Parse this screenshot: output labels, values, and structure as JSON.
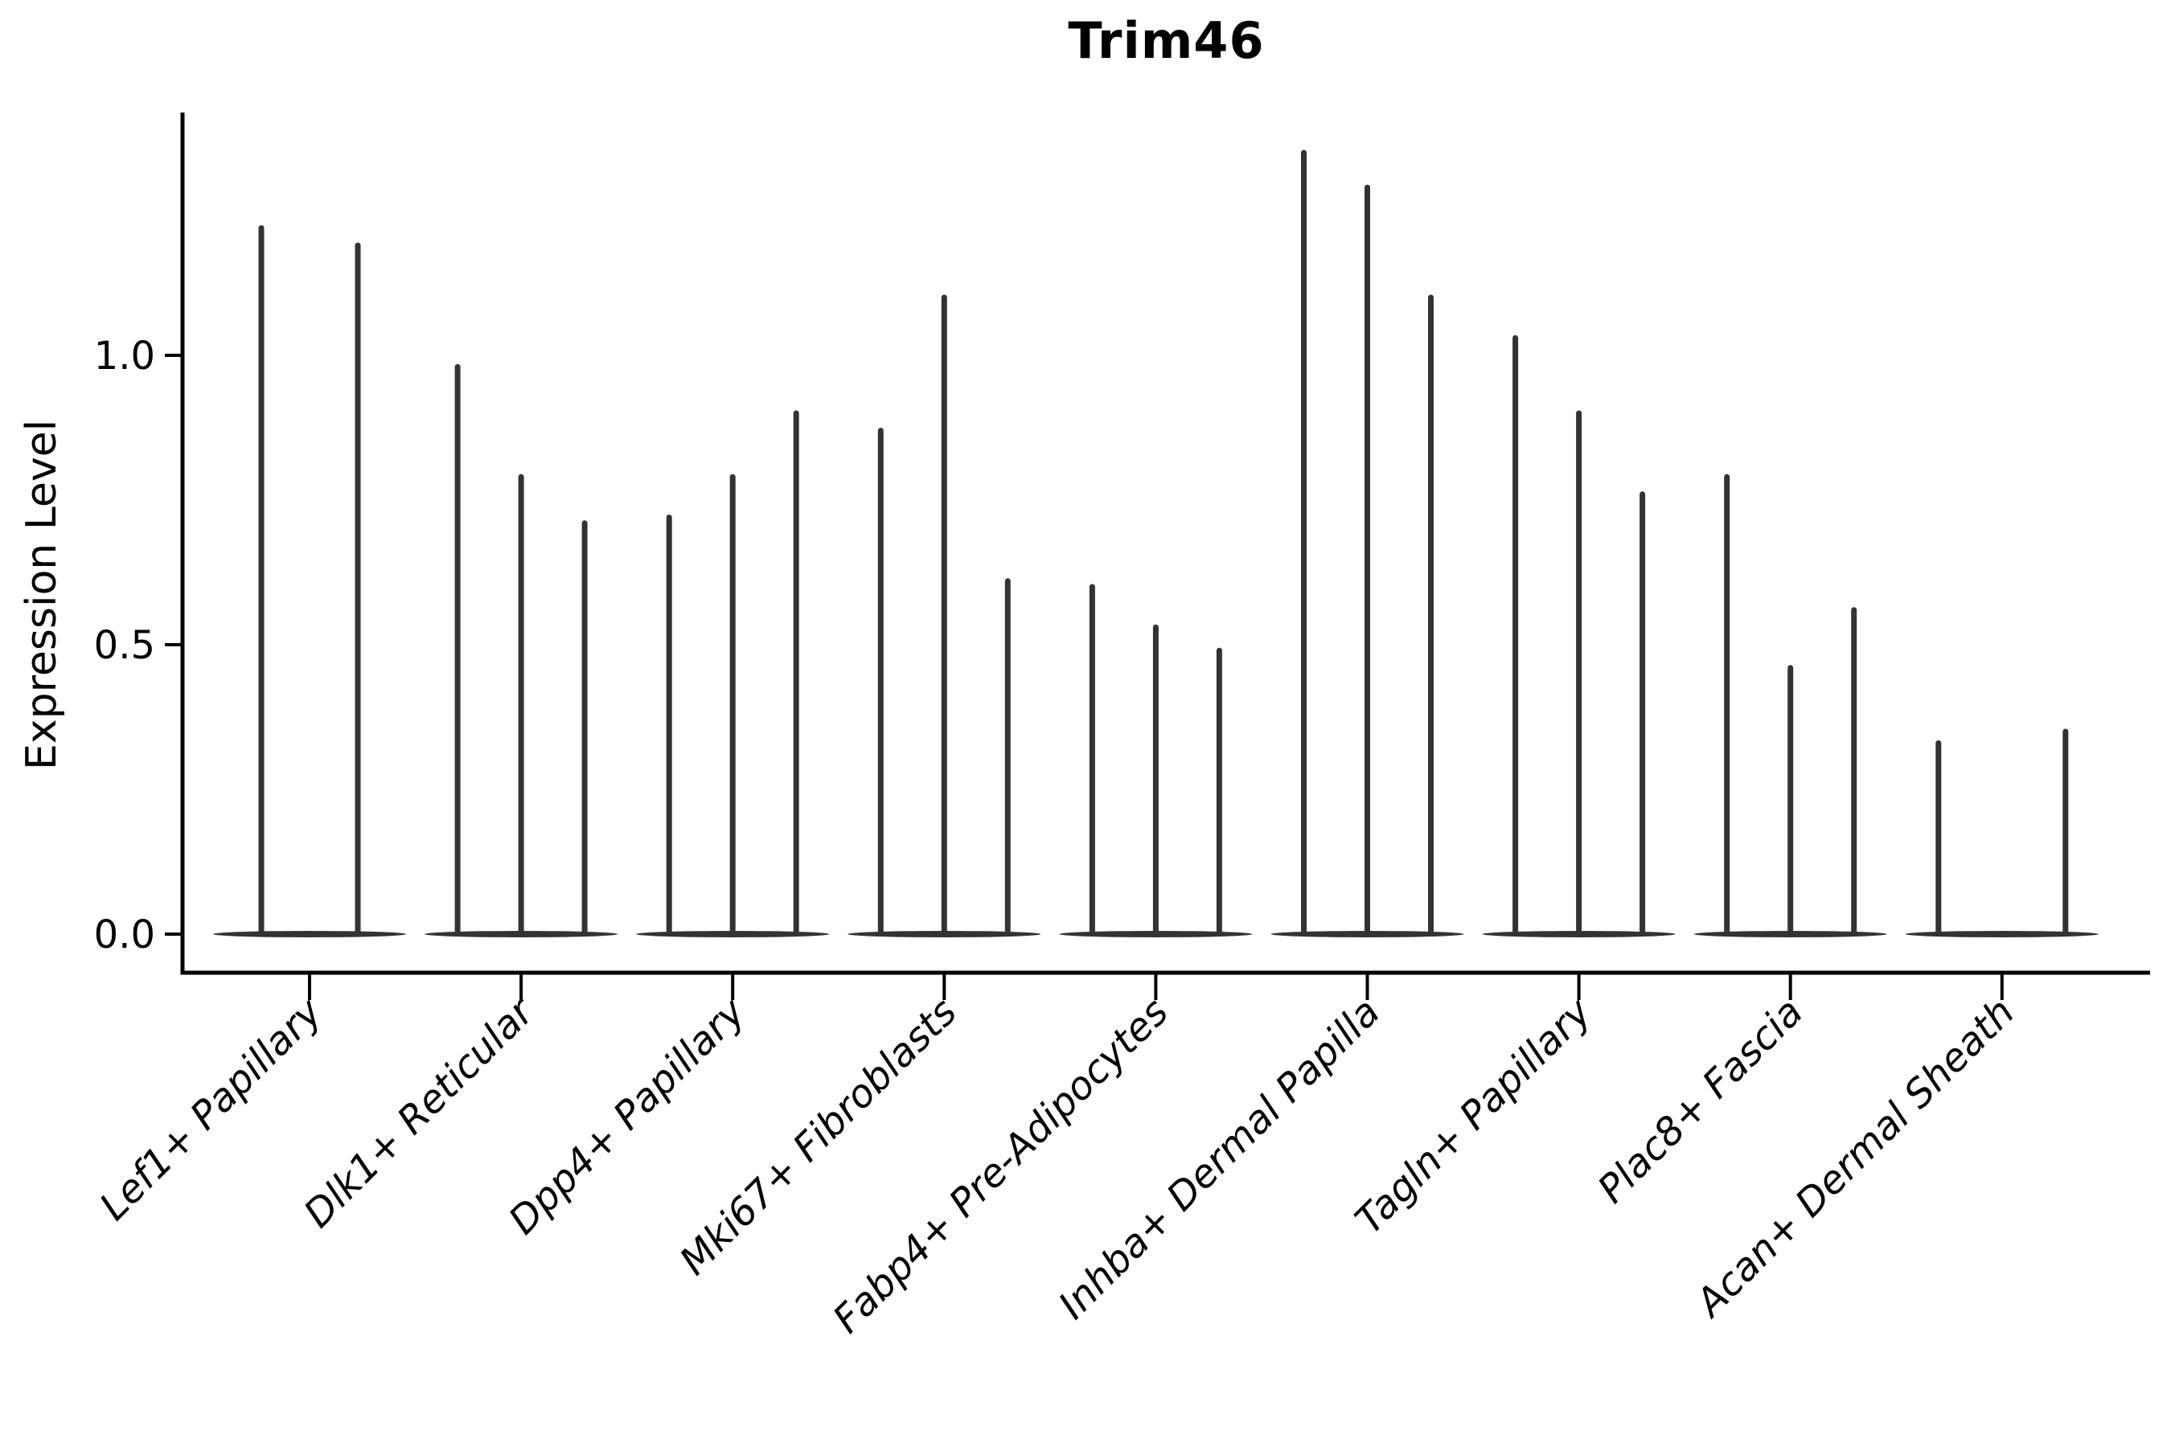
{
  "chart_data": {
    "type": "violin",
    "title": "Trim46",
    "xlabel": "",
    "ylabel": "Expression Level",
    "ylim": [
      -0.07,
      1.42
    ],
    "yticks": [
      0.0,
      0.5,
      1.0
    ],
    "ytick_labels": [
      "0.0",
      "0.5",
      "1.0"
    ],
    "grid": false,
    "legend": false,
    "categories": [
      "Lef1+ Papillary",
      "Dlk1+ Reticular",
      "Dpp4+ Papillary",
      "Mki67+ Fibroblasts",
      "Fabp4+ Pre-Adipocytes",
      "Inhba+ Dermal Papilla",
      "Tagln+ Papillary",
      "Plac8+ Fascia",
      "Acan+ Dermal Sheath"
    ],
    "series": [
      {
        "category": "Lef1+ Papillary",
        "violin_max_values": [
          1.22,
          1.19
        ]
      },
      {
        "category": "Dlk1+ Reticular",
        "violin_max_values": [
          0.98,
          0.79,
          0.71
        ]
      },
      {
        "category": "Dpp4+ Papillary",
        "violin_max_values": [
          0.72,
          0.79,
          0.9
        ]
      },
      {
        "category": "Mki67+ Fibroblasts",
        "violin_max_values": [
          0.87,
          1.1,
          0.61
        ]
      },
      {
        "category": "Fabp4+ Pre-Adipocytes",
        "violin_max_values": [
          0.6,
          0.53,
          0.49
        ]
      },
      {
        "category": "Inhba+ Dermal Papilla",
        "violin_max_values": [
          1.35,
          1.29,
          1.1
        ]
      },
      {
        "category": "Tagln+ Papillary",
        "violin_max_values": [
          1.03,
          0.9,
          0.76
        ]
      },
      {
        "category": "Plac8+ Fascia",
        "violin_max_values": [
          0.79,
          0.46,
          0.56
        ]
      },
      {
        "category": "Acan+ Dermal Sheath",
        "violin_max_values": [
          0.33,
          0.0,
          0.35
        ]
      }
    ],
    "density_note": "each violin has its bulk at expression 0 (flat lens at baseline) with a thin spike rising to its max value"
  },
  "style": {
    "violin_color": "#333333",
    "axis_color": "#000000",
    "text_color": "#000000",
    "background": "#ffffff"
  }
}
